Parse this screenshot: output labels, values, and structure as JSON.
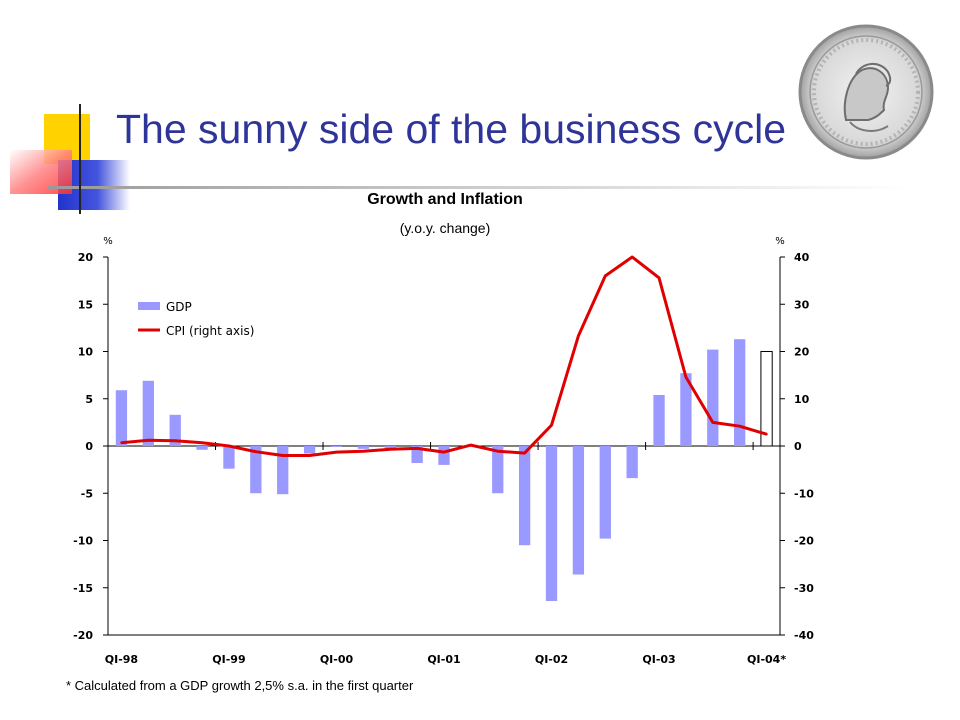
{
  "slide": {
    "title": "The sunny side of the business cycle",
    "footnote": "* Calculated from a GDP growth 2,5% s.a. in the first quarter"
  },
  "icons": {
    "seal": "argentine-coin-seal-icon",
    "corner": "slide-corner-decoration-icon"
  },
  "colors": {
    "title": "#2f3598",
    "gdp_bar": "#9999ff",
    "cpi_line": "#e00000"
  },
  "chart_data": {
    "type": "bar",
    "title": "Growth and Inflation",
    "subtitle": "(y.o.y. change)",
    "left_unit": "%",
    "right_unit": "%",
    "ylim": [
      -20,
      20
    ],
    "y2lim": [
      -40,
      40
    ],
    "yticks": [
      20,
      15,
      10,
      5,
      0,
      -5,
      -10,
      -15,
      -20
    ],
    "y2ticks": [
      40,
      30,
      20,
      10,
      0,
      -10,
      -20,
      -30,
      -40
    ],
    "x_tick_labels": [
      "QI-98",
      "QI-99",
      "QI-00",
      "QI-01",
      "QI-02",
      "QI-03",
      "QI-04*"
    ],
    "quarters": [
      "QI-98",
      "QII-98",
      "QIII-98",
      "QIV-98",
      "QI-99",
      "QII-99",
      "QIII-99",
      "QIV-99",
      "QI-00",
      "QII-00",
      "QIII-00",
      "QIV-00",
      "QI-01",
      "QII-01",
      "QIII-01",
      "QIV-01",
      "QI-02",
      "QII-02",
      "QIII-02",
      "QIV-02",
      "QI-03",
      "QII-03",
      "QIII-03",
      "QIV-03",
      "QI-04*"
    ],
    "series": [
      {
        "name": "GDP",
        "kind": "bar",
        "axis": "left",
        "values": [
          5.9,
          6.9,
          3.3,
          -0.4,
          -2.4,
          -5.0,
          -5.1,
          -0.8,
          -0.1,
          -0.3,
          -0.4,
          -1.8,
          -2.0,
          0.1,
          -5.0,
          -10.5,
          -16.4,
          -13.6,
          -9.8,
          -3.4,
          5.4,
          7.7,
          10.2,
          11.3,
          10.0
        ],
        "outlined_last": true
      },
      {
        "name": "CPI (right axis)",
        "kind": "line",
        "axis": "right",
        "values": [
          0.7,
          1.2,
          1.1,
          0.7,
          0.0,
          -1.2,
          -2.0,
          -2.0,
          -1.3,
          -1.1,
          -0.7,
          -0.5,
          -1.3,
          0.2,
          -1.1,
          -1.5,
          4.4,
          23.3,
          36.0,
          40.0,
          35.6,
          14.6,
          5.0,
          4.2,
          2.5
        ]
      }
    ],
    "legend": {
      "position": "top-left"
    }
  }
}
